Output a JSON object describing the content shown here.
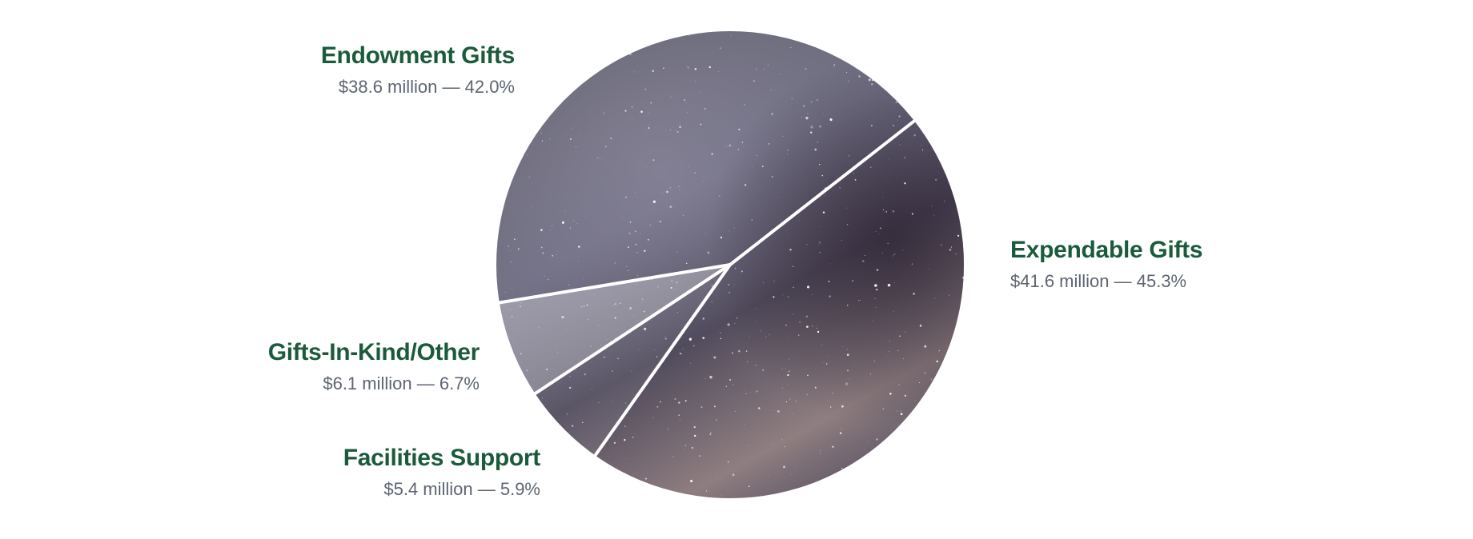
{
  "chart_data": {
    "type": "pie",
    "start_angle_deg": -38,
    "direction": "clockwise",
    "slices": [
      {
        "label": "Expendable Gifts",
        "value_text": "$41.6 million — 45.3%",
        "amount_millions": 41.6,
        "percent": 45.3
      },
      {
        "label": "Facilities Support",
        "value_text": "$5.4 million — 5.9%",
        "amount_millions": 5.4,
        "percent": 5.9
      },
      {
        "label": "Gifts-In-Kind/Other",
        "value_text": "$6.1 million — 6.7%",
        "amount_millions": 6.1,
        "percent": 6.7
      },
      {
        "label": "Endowment Gifts",
        "value_text": "$38.6 million — 42.0%",
        "amount_millions": 38.6,
        "percent": 42.0
      }
    ],
    "colors": {
      "label_title": "#1b5b3b",
      "label_value": "#5d6572",
      "separator": "#ffffff"
    }
  }
}
